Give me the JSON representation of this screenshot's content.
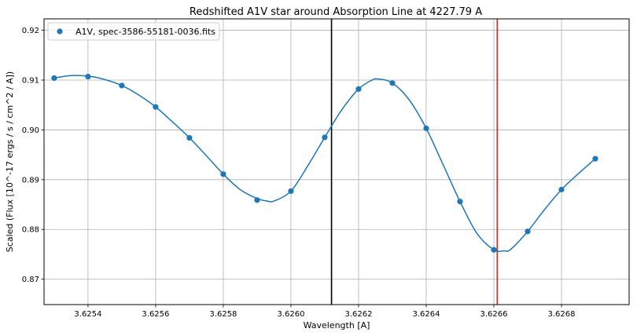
{
  "chart_data": {
    "type": "scatter",
    "title": "Redshifted A1V star around Absorption Line at 4227.79 A",
    "xlabel": "Wavelength [A]",
    "ylabel": "Scaled (Flux [10^-17 ergs / s / cm^2 / A])",
    "xlim": [
      3.62527,
      3.627
    ],
    "ylim": [
      0.8649,
      0.9223
    ],
    "grid": true,
    "legend_position": "top-left",
    "x_ticks": [
      {
        "value": 3.6254,
        "label": "3.6254"
      },
      {
        "value": 3.6256,
        "label": "3.6256"
      },
      {
        "value": 3.6258,
        "label": "3.6258"
      },
      {
        "value": 3.626,
        "label": "3.6260"
      },
      {
        "value": 3.6262,
        "label": "3.6262"
      },
      {
        "value": 3.6264,
        "label": "3.6264"
      },
      {
        "value": 3.6266,
        "label": "3.6266"
      },
      {
        "value": 3.6268,
        "label": "3.6268"
      }
    ],
    "y_ticks": [
      {
        "value": 0.87,
        "label": "0.87"
      },
      {
        "value": 0.88,
        "label": "0.88"
      },
      {
        "value": 0.89,
        "label": "0.89"
      },
      {
        "value": 0.9,
        "label": "0.90"
      },
      {
        "value": 0.91,
        "label": "0.91"
      },
      {
        "value": 0.92,
        "label": "0.92"
      }
    ],
    "series": [
      {
        "name": "A1V, spec-3586-55181-0036.fits",
        "color": "#1f77b4",
        "marker": "circle",
        "x": [
          3.6253,
          3.6254,
          3.6255,
          3.6256,
          3.6257,
          3.6258,
          3.6259,
          3.626,
          3.6261,
          3.6262,
          3.6263,
          3.6264,
          3.6265,
          3.6266,
          3.6267,
          3.6268,
          3.6269
        ],
        "y": [
          0.9104,
          0.9107,
          0.9089,
          0.9046,
          0.8984,
          0.8911,
          0.8859,
          0.8877,
          0.8985,
          0.9082,
          0.9094,
          0.9003,
          0.8856,
          0.8759,
          0.8796,
          0.888,
          0.8942
        ]
      }
    ],
    "fit_curve": {
      "color": "#1f77b4",
      "x": [
        3.6253,
        3.62535,
        3.6254,
        3.62545,
        3.6255,
        3.62555,
        3.6256,
        3.62565,
        3.6257,
        3.62575,
        3.6258,
        3.62585,
        3.6259,
        3.62593,
        3.62595,
        3.626,
        3.62605,
        3.6261,
        3.62615,
        3.6262,
        3.62624,
        3.62626,
        3.6263,
        3.62635,
        3.6264,
        3.62645,
        3.6265,
        3.62655,
        3.6266,
        3.62663,
        3.62665,
        3.6267,
        3.62675,
        3.6268,
        3.62685,
        3.6269
      ],
      "y": [
        0.9104,
        0.9109,
        0.9108,
        0.9101,
        0.9089,
        0.907,
        0.9046,
        0.9016,
        0.8984,
        0.8948,
        0.8911,
        0.888,
        0.8862,
        0.8857,
        0.8857,
        0.8877,
        0.8928,
        0.8985,
        0.904,
        0.9082,
        0.91,
        0.9102,
        0.9094,
        0.906,
        0.9003,
        0.893,
        0.8856,
        0.8792,
        0.8759,
        0.8757,
        0.876,
        0.8796,
        0.884,
        0.888,
        0.8912,
        0.8942
      ]
    },
    "vertical_lines": [
      {
        "x": 3.62612,
        "color": "#000000"
      },
      {
        "x": 3.62661,
        "color": "#d62728"
      }
    ]
  }
}
